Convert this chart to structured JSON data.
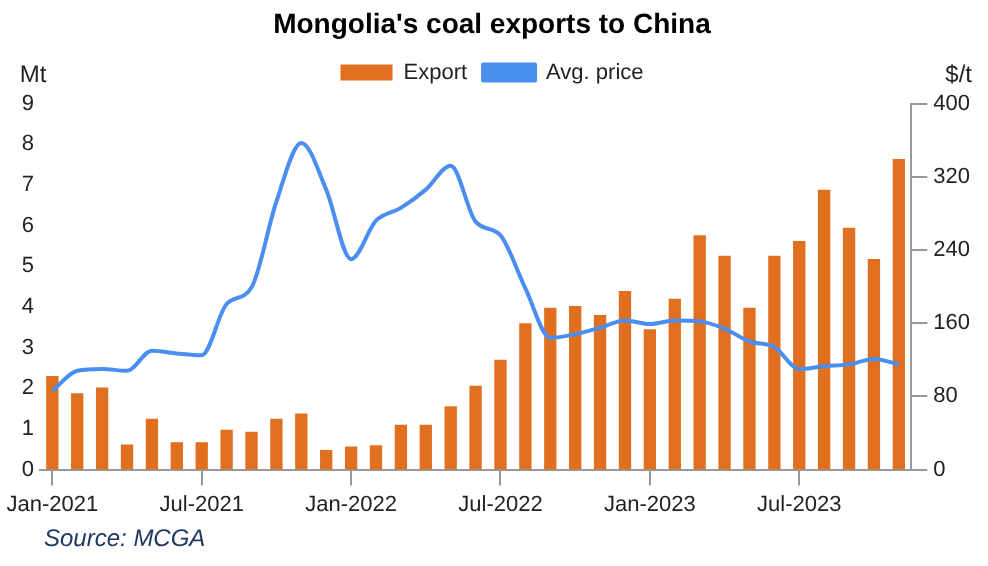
{
  "chart_data": {
    "type": "bar",
    "title": "Mongolia's coal exports to China",
    "ylabel": "Mt",
    "y2label": "$/t",
    "categories": [
      "Jan-2021",
      null,
      null,
      null,
      null,
      null,
      "Jul-2021",
      null,
      null,
      null,
      null,
      null,
      "Jan-2022",
      null,
      null,
      null,
      null,
      null,
      "Jul-2022",
      null,
      null,
      null,
      null,
      null,
      "Jan-2023",
      null,
      null,
      null,
      null,
      null,
      "Jul-2023",
      null,
      null,
      null,
      null
    ],
    "series": [
      {
        "name": "Export",
        "color": "#e07020",
        "values": [
          2.3,
          1.88,
          2.02,
          0.62,
          1.25,
          0.67,
          0.67,
          0.98,
          0.93,
          1.25,
          1.38,
          0.48,
          0.57,
          0.6,
          1.1,
          1.1,
          1.56,
          2.06,
          2.7,
          3.6,
          3.98,
          4.02,
          3.8,
          4.39,
          3.45,
          4.2,
          5.76,
          5.26,
          3.98,
          5.26,
          5.62,
          6.88,
          5.95,
          5.18,
          7.64
        ]
      },
      {
        "name": "Avg. price",
        "type": "line",
        "axis": "y2",
        "color": "#4a8ef0",
        "marker": "none",
        "values": [
          86,
          108,
          110,
          108,
          130,
          127,
          125,
          181,
          199,
          293,
          357,
          306,
          230,
          272,
          286,
          306,
          332,
          271,
          256,
          198,
          144,
          148,
          155,
          163,
          159,
          163,
          162,
          154,
          140,
          134,
          110,
          113,
          115,
          121,
          115
        ]
      }
    ],
    "ylim": [
      0,
      9
    ],
    "yticks": [
      0,
      1,
      2,
      3,
      4,
      5,
      6,
      7,
      8,
      9
    ],
    "y2lim": [
      0,
      400
    ],
    "y2ticks": [
      0,
      80,
      160,
      240,
      320,
      400
    ],
    "grid": false,
    "legend": "top",
    "annotations": [
      "Source: MCGA"
    ]
  }
}
